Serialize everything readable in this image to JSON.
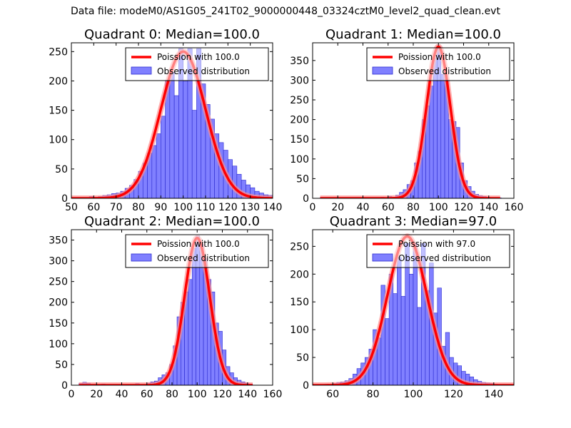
{
  "figure": {
    "suptitle": "Data file: modeM0/AS1G05_241T02_9000000448_03324cztM0_level2_quad_clean.evt"
  },
  "colors": {
    "bars": "#8080ff",
    "bar_edge": "#2a2ad0",
    "curve": "#ff0000",
    "curve_glow": "#ff9090"
  },
  "chart_data": [
    {
      "type": "bar",
      "title": "Quadrant 0: Median=100.0",
      "legend": {
        "placement": "top-right",
        "curve_label": "Poission with 100.0",
        "bars_label": "Observed distribution"
      },
      "xlim": [
        50,
        140
      ],
      "ylim": [
        0,
        265
      ],
      "xticks": [
        50,
        60,
        70,
        80,
        90,
        100,
        110,
        120,
        130,
        140
      ],
      "yticks": [
        0,
        50,
        100,
        150,
        200,
        250
      ],
      "bin_width": 2,
      "bins": [
        [
          58,
          3
        ],
        [
          60,
          2
        ],
        [
          62,
          3
        ],
        [
          64,
          5
        ],
        [
          66,
          6
        ],
        [
          68,
          8
        ],
        [
          70,
          9
        ],
        [
          72,
          12
        ],
        [
          74,
          17
        ],
        [
          76,
          22
        ],
        [
          78,
          32
        ],
        [
          80,
          46
        ],
        [
          82,
          60
        ],
        [
          84,
          77
        ],
        [
          86,
          90
        ],
        [
          88,
          110
        ],
        [
          90,
          140
        ],
        [
          92,
          200
        ],
        [
          94,
          215
        ],
        [
          96,
          175
        ],
        [
          98,
          255
        ],
        [
          100,
          200
        ],
        [
          102,
          255
        ],
        [
          104,
          150
        ],
        [
          106,
          255
        ],
        [
          108,
          195
        ],
        [
          110,
          160
        ],
        [
          112,
          135
        ],
        [
          114,
          110
        ],
        [
          116,
          95
        ],
        [
          118,
          82
        ],
        [
          120,
          66
        ],
        [
          122,
          55
        ],
        [
          124,
          41
        ],
        [
          126,
          31
        ],
        [
          128,
          23
        ],
        [
          130,
          18
        ],
        [
          132,
          12
        ],
        [
          134,
          9
        ],
        [
          136,
          6
        ],
        [
          138,
          5
        ]
      ],
      "curve": {
        "mu": 100,
        "peak": 250,
        "sigma": 10
      }
    },
    {
      "type": "bar",
      "title": "Quadrant 1: Median=100.0",
      "legend": {
        "placement": "top-right",
        "curve_label": "Poission with 100.0",
        "bars_label": "Observed distribution"
      },
      "xlim": [
        0,
        160
      ],
      "ylim": [
        0,
        395
      ],
      "xticks": [
        0,
        20,
        40,
        60,
        80,
        100,
        120,
        140,
        160
      ],
      "yticks": [
        0,
        50,
        100,
        150,
        200,
        250,
        300,
        350
      ],
      "bin_width": 3,
      "bins": [
        [
          6,
          2
        ],
        [
          54,
          3
        ],
        [
          60,
          5
        ],
        [
          66,
          8
        ],
        [
          69,
          15
        ],
        [
          72,
          22
        ],
        [
          75,
          35
        ],
        [
          78,
          45
        ],
        [
          81,
          90
        ],
        [
          84,
          120
        ],
        [
          87,
          200
        ],
        [
          90,
          235
        ],
        [
          93,
          285
        ],
        [
          96,
          355
        ],
        [
          99,
          385
        ],
        [
          102,
          315
        ],
        [
          105,
          300
        ],
        [
          108,
          200
        ],
        [
          111,
          195
        ],
        [
          114,
          180
        ],
        [
          117,
          90
        ],
        [
          120,
          45
        ],
        [
          123,
          30
        ],
        [
          126,
          18
        ],
        [
          129,
          10
        ],
        [
          132,
          7
        ],
        [
          135,
          5
        ],
        [
          138,
          3
        ],
        [
          141,
          2
        ],
        [
          147,
          1
        ]
      ],
      "curve": {
        "mu": 100,
        "peak": 385,
        "sigma": 9.5,
        "xmin": 6,
        "xmax": 150
      }
    },
    {
      "type": "bar",
      "title": "Quadrant 2: Median=100.0",
      "legend": {
        "placement": "top-right",
        "curve_label": "Poission with 100.0",
        "bars_label": "Observed distribution"
      },
      "xlim": [
        0,
        160
      ],
      "ylim": [
        0,
        375
      ],
      "xticks": [
        0,
        20,
        40,
        60,
        80,
        100,
        120,
        140,
        160
      ],
      "yticks": [
        0,
        50,
        100,
        150,
        200,
        250,
        300,
        350
      ],
      "bin_width": 3,
      "bins": [
        [
          6,
          4
        ],
        [
          9,
          7
        ],
        [
          12,
          5
        ],
        [
          24,
          3
        ],
        [
          36,
          2
        ],
        [
          51,
          4
        ],
        [
          60,
          5
        ],
        [
          63,
          8
        ],
        [
          66,
          10
        ],
        [
          69,
          18
        ],
        [
          72,
          25
        ],
        [
          75,
          30
        ],
        [
          78,
          50
        ],
        [
          81,
          95
        ],
        [
          84,
          165
        ],
        [
          87,
          200
        ],
        [
          90,
          225
        ],
        [
          93,
          255
        ],
        [
          96,
          330
        ],
        [
          99,
          360
        ],
        [
          102,
          340
        ],
        [
          105,
          305
        ],
        [
          108,
          255
        ],
        [
          111,
          225
        ],
        [
          114,
          150
        ],
        [
          117,
          130
        ],
        [
          120,
          85
        ],
        [
          123,
          45
        ],
        [
          126,
          30
        ],
        [
          129,
          18
        ],
        [
          132,
          12
        ],
        [
          135,
          8
        ],
        [
          138,
          5
        ],
        [
          141,
          3
        ]
      ],
      "curve": {
        "mu": 100,
        "peak": 355,
        "sigma": 10,
        "xmin": 6,
        "xmax": 145
      }
    },
    {
      "type": "bar",
      "title": "Quadrant 3: Median=97.0",
      "legend": {
        "placement": "top-right",
        "curve_label": "Poission with 97.0",
        "bars_label": "Observed distribution"
      },
      "xlim": [
        50,
        150
      ],
      "ylim": [
        0,
        280
      ],
      "xticks": [
        60,
        80,
        100,
        120,
        140
      ],
      "yticks": [
        0,
        50,
        100,
        150,
        200,
        250
      ],
      "bin_width": 2,
      "bins": [
        [
          56,
          2
        ],
        [
          60,
          3
        ],
        [
          62,
          5
        ],
        [
          64,
          6
        ],
        [
          66,
          8
        ],
        [
          68,
          12
        ],
        [
          70,
          20
        ],
        [
          72,
          30
        ],
        [
          74,
          40
        ],
        [
          76,
          50
        ],
        [
          78,
          65
        ],
        [
          80,
          100
        ],
        [
          82,
          85
        ],
        [
          84,
          180
        ],
        [
          86,
          120
        ],
        [
          88,
          200
        ],
        [
          90,
          165
        ],
        [
          92,
          230
        ],
        [
          94,
          160
        ],
        [
          96,
          255
        ],
        [
          98,
          200
        ],
        [
          100,
          255
        ],
        [
          102,
          140
        ],
        [
          104,
          255
        ],
        [
          106,
          170
        ],
        [
          108,
          220
        ],
        [
          110,
          130
        ],
        [
          112,
          175
        ],
        [
          114,
          70
        ],
        [
          116,
          95
        ],
        [
          118,
          50
        ],
        [
          120,
          40
        ],
        [
          122,
          35
        ],
        [
          124,
          25
        ],
        [
          126,
          20
        ],
        [
          128,
          15
        ],
        [
          130,
          10
        ],
        [
          132,
          7
        ],
        [
          134,
          5
        ],
        [
          136,
          4
        ],
        [
          138,
          3
        ],
        [
          140,
          2
        ],
        [
          142,
          1
        ]
      ],
      "curve": {
        "mu": 97,
        "peak": 268,
        "sigma": 9.8
      }
    }
  ]
}
